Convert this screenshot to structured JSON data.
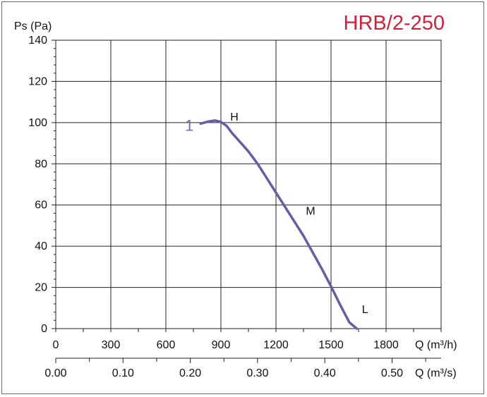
{
  "chart_data": {
    "type": "line",
    "title": "HRB/2-250",
    "ylabel": "Ps (Pa)",
    "xlabel": "Q (m³/h)",
    "x2label": "Q (m³/s)",
    "ylim": [
      0,
      140
    ],
    "xlim": [
      0,
      2100
    ],
    "x_ticks": [
      "0",
      "300",
      "600",
      "900",
      "1200",
      "1500",
      "1800"
    ],
    "x_tick_values": [
      0,
      300,
      600,
      900,
      1200,
      1500,
      1800
    ],
    "y_ticks": [
      "0",
      "20",
      "40",
      "60",
      "80",
      "100",
      "120",
      "140"
    ],
    "y_tick_values": [
      0,
      20,
      40,
      60,
      80,
      100,
      120,
      140
    ],
    "x2_ticks": [
      "0.00",
      "0.10",
      "0.20",
      "0.30",
      "0.40",
      "0.50"
    ],
    "x2_tick_values": [
      0,
      0.1,
      0.2,
      0.3,
      0.4,
      0.5
    ],
    "grid": true,
    "colors": {
      "curve": "#6b5aa6",
      "title": "#d0203a",
      "grid": "#222222"
    },
    "series": [
      {
        "name": "1",
        "x": [
          790,
          830,
          870,
          900,
          930,
          960,
          1000,
          1050,
          1100,
          1150,
          1200,
          1250,
          1300,
          1350,
          1400,
          1450,
          1500,
          1550,
          1600,
          1640
        ],
        "y": [
          99.5,
          100.5,
          101,
          100.3,
          98.5,
          95,
          91,
          86,
          80,
          73,
          66,
          59,
          52,
          45,
          37,
          29,
          20.5,
          11.5,
          3,
          0
        ]
      }
    ],
    "points": [
      {
        "label": "H",
        "x": 920,
        "y": 100
      },
      {
        "label": "M",
        "x": 1340,
        "y": 58
      },
      {
        "label": "L",
        "x": 1630,
        "y": 2
      }
    ]
  }
}
